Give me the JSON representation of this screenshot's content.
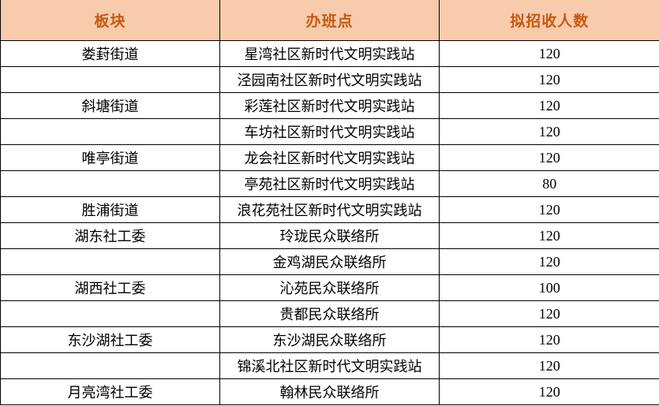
{
  "table": {
    "headers": [
      "板块",
      "办班点",
      "拟招收人数"
    ],
    "rows": [
      {
        "section": "娄葑街道",
        "site": "星湾社区新时代文明实践站",
        "quota": "120"
      },
      {
        "section": "",
        "site": "泾园南社区新时代文明实践站",
        "quota": "120"
      },
      {
        "section": "斜塘街道",
        "site": "彩莲社区新时代文明实践站",
        "quota": "120"
      },
      {
        "section": "",
        "site": "车坊社区新时代文明实践站",
        "quota": "120"
      },
      {
        "section": "唯亭街道",
        "site": "龙会社区新时代文明实践站",
        "quota": "120"
      },
      {
        "section": "",
        "site": "亭苑社区新时代文明实践站",
        "quota": "80"
      },
      {
        "section": "胜浦街道",
        "site": "浪花苑社区新时代文明实践站",
        "quota": "120"
      },
      {
        "section": "湖东社工委",
        "site": "玲珑民众联络所",
        "quota": "120"
      },
      {
        "section": "",
        "site": "金鸡湖民众联络所",
        "quota": "120"
      },
      {
        "section": "湖西社工委",
        "site": "沁苑民众联络所",
        "quota": "100"
      },
      {
        "section": "",
        "site": "贵都民众联络所",
        "quota": "120"
      },
      {
        "section": "东沙湖社工委",
        "site": "东沙湖民众联络所",
        "quota": "120"
      },
      {
        "section": "",
        "site": "锦溪北社区新时代文明实践站",
        "quota": "120"
      },
      {
        "section": "月亮湾社工委",
        "site": "翰林民众联络所",
        "quota": "120"
      }
    ]
  },
  "colors": {
    "header_bg": "#F8CBAD",
    "header_text": "#C55A11",
    "border": "#000000",
    "body_text": "#000000",
    "page_bg": "#FFFFFF"
  }
}
